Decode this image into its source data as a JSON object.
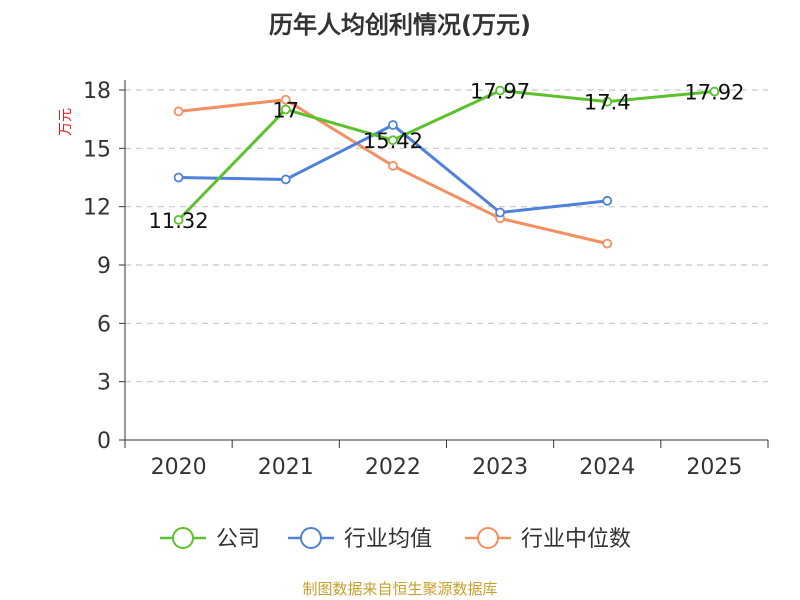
{
  "chart_data": {
    "type": "line",
    "title": "历年人均创利情况(万元)",
    "ylabel": "万元",
    "xlabel": "",
    "categories": [
      "2020",
      "2021",
      "2022",
      "2023",
      "2024",
      "2025"
    ],
    "yticks": [
      "0",
      "3",
      "6",
      "9",
      "12",
      "15",
      "18"
    ],
    "ylim": [
      0,
      18
    ],
    "grid": true,
    "legend_position": "bottom",
    "series": [
      {
        "name": "公司",
        "color": "#5cc12e",
        "values": [
          11.32,
          17,
          15.42,
          17.97,
          17.4,
          17.92
        ],
        "labels": [
          "11.32",
          "17",
          "15.42",
          "17.97",
          "17.4",
          "17.92"
        ]
      },
      {
        "name": "行业均值",
        "color": "#4f81d9",
        "values": [
          13.5,
          13.4,
          16.2,
          11.7,
          12.3,
          null
        ]
      },
      {
        "name": "行业中位数",
        "color": "#f39061",
        "values": [
          16.9,
          17.5,
          14.1,
          11.4,
          10.1,
          null
        ]
      }
    ]
  },
  "source": "制图数据来自恒生聚源数据库"
}
